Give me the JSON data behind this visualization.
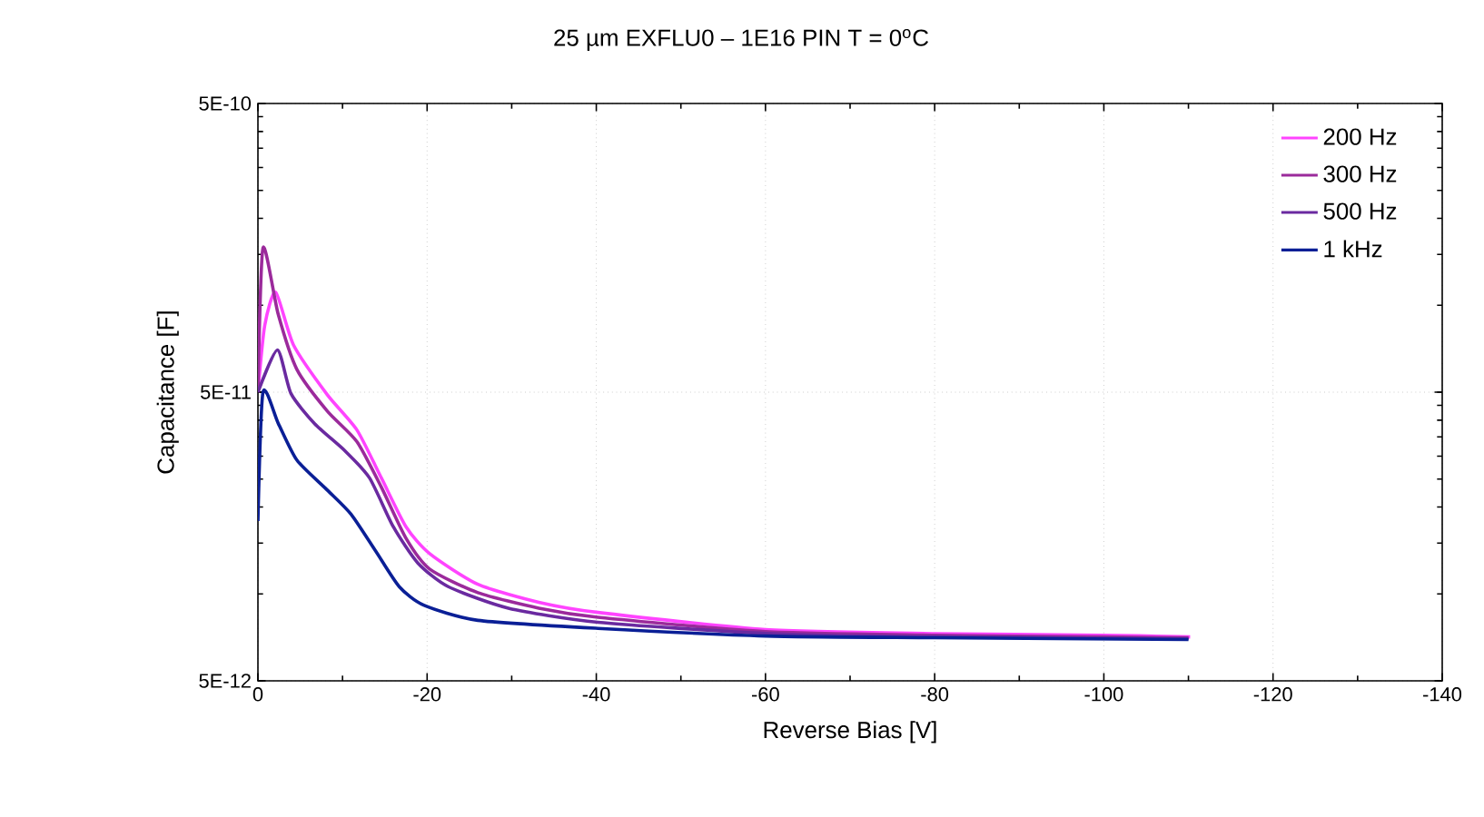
{
  "chart_data": {
    "type": "line",
    "title": "25 µm EXFLU0 – 1E16  PIN  T = 0$^{o}$C",
    "xlabel": "Reverse Bias [V]",
    "ylabel": "Capacitance [F]",
    "log": "y",
    "grid": true,
    "legend": "top right",
    "line_style": "solid",
    "marker": "none",
    "xlim": [
      0,
      -140
    ],
    "xticks": [
      0,
      -20,
      -40,
      -60,
      -80,
      -100,
      -120,
      -140
    ],
    "ylim": [
      5e-12,
      5e-10
    ],
    "yticks": [
      {
        "value": 5e-12,
        "label": "5E-12"
      },
      {
        "value": 5e-11,
        "label": "5E-11"
      },
      {
        "value": 5e-10,
        "label": "5E-10"
      }
    ],
    "series": [
      {
        "name": "200 Hz",
        "color": "#ff44ff",
        "x": [
          0,
          -0.8,
          -2.1,
          -4.2,
          -8.2,
          -11.7,
          -14.6,
          -17.5,
          -20.3,
          -26,
          -33.2,
          -40.2,
          -60,
          -80,
          -99.8,
          -110.2
        ],
        "values": [
          5e-11,
          8.5e-11,
          1.11e-10,
          7.29e-11,
          4.9e-11,
          3.7e-11,
          2.52e-11,
          1.71e-11,
          1.38e-11,
          1.08e-11,
          9.36e-12,
          8.63e-12,
          7.53e-12,
          7.29e-12,
          7.2e-12,
          7.1e-12
        ]
      },
      {
        "name": "300 Hz",
        "color": "#9b2a9b",
        "x": [
          0,
          -0.6,
          -2.4,
          -4.6,
          -8.2,
          -11.7,
          -14.6,
          -17.5,
          -20.3,
          -26,
          -33.2,
          -40.2,
          -60,
          -80,
          -100,
          -110
        ],
        "values": [
          5e-11,
          1.58e-10,
          9.3e-11,
          6e-11,
          4.3e-11,
          3.37e-11,
          2.34e-11,
          1.56e-11,
          1.22e-11,
          1.01e-11,
          8.93e-12,
          8.3e-12,
          7.4e-12,
          7.2e-12,
          7.1e-12,
          7.05e-12
        ]
      },
      {
        "name": "500 Hz",
        "color": "#6a2aa0",
        "x": [
          0,
          -2.3,
          -3.9,
          -6.7,
          -10.3,
          -13.2,
          -16,
          -18.9,
          -22.5,
          -29.6,
          -40.2,
          -60,
          -80,
          -110
        ],
        "values": [
          5e-11,
          7e-11,
          4.95e-11,
          3.89e-11,
          3.13e-11,
          2.52e-11,
          1.71e-11,
          1.28e-11,
          1.06e-11,
          8.93e-12,
          7.98e-12,
          7.3e-12,
          7.1e-12,
          7e-12
        ]
      },
      {
        "name": "1 kHz",
        "color": "#0a1f96",
        "x": [
          0,
          -0.6,
          -2.4,
          -4.6,
          -8.2,
          -11,
          -13.9,
          -16.7,
          -19.6,
          -26,
          -40.2,
          -60,
          -80,
          -110
        ],
        "values": [
          1.79e-11,
          5e-11,
          3.9e-11,
          2.91e-11,
          2.29e-11,
          1.89e-11,
          1.41e-11,
          1.06e-11,
          9.14e-12,
          8.1e-12,
          7.6e-12,
          7.15e-12,
          7.05e-12,
          6.95e-12
        ]
      }
    ]
  }
}
